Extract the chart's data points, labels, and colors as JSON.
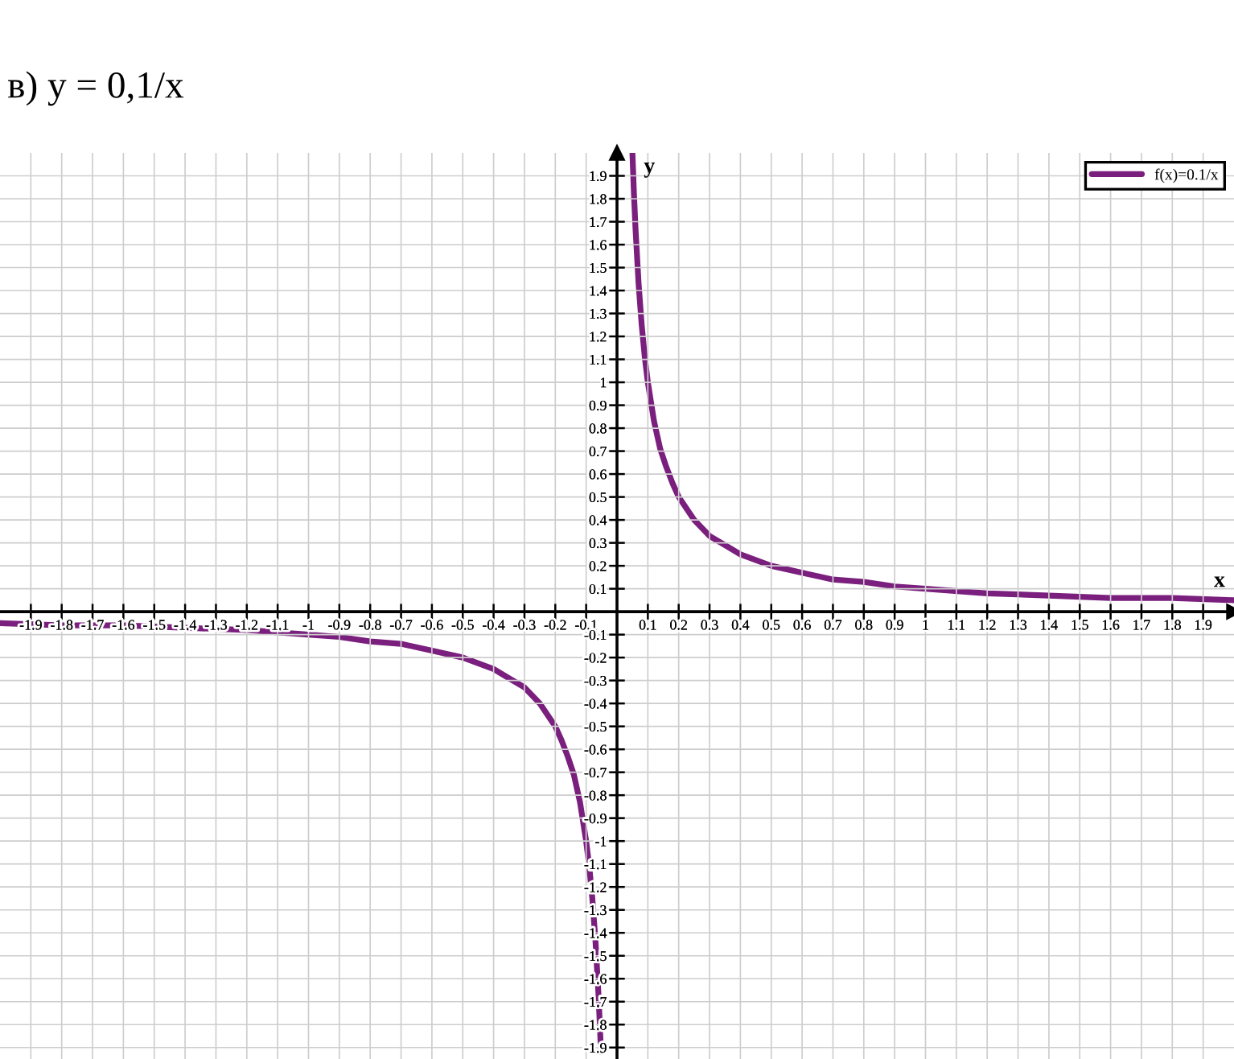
{
  "chart_data": {
    "type": "line",
    "title": "в) y = 0,1/x",
    "xlabel": "x",
    "ylabel": "y",
    "x": [
      -2,
      -1.8,
      -1.6,
      -1.4,
      -1.2,
      -1,
      -0.9,
      -0.8,
      -0.7,
      -0.6,
      -0.5,
      -0.4,
      -0.35,
      -0.3,
      -0.25,
      -0.2,
      -0.18,
      -0.16,
      -0.14,
      -0.12,
      -0.1,
      -0.09,
      -0.08,
      -0.07,
      -0.06,
      -0.055,
      -0.052,
      0,
      0.05,
      0.055,
      0.06,
      0.07,
      0.08,
      0.09,
      0.1,
      0.12,
      0.14,
      0.16,
      0.18,
      0.2,
      0.25,
      0.3,
      0.35,
      0.4,
      0.5,
      0.6,
      0.7,
      0.8,
      0.9,
      1,
      1.2,
      1.4,
      1.6,
      1.8,
      2
    ],
    "series": [
      {
        "name": "f(x)=0.1/x",
        "color": "#7a1f7d",
        "values": [
          -0.05,
          -0.06,
          -0.06,
          -0.07,
          -0.08,
          -0.1,
          -0.11,
          -0.13,
          -0.14,
          -0.17,
          -0.2,
          -0.25,
          -0.29,
          -0.33,
          -0.4,
          -0.5,
          -0.56,
          -0.63,
          -0.71,
          -0.83,
          -1.0,
          -1.11,
          -1.25,
          -1.43,
          -1.67,
          -1.82,
          -1.92,
          null,
          2.0,
          1.82,
          1.67,
          1.43,
          1.25,
          1.11,
          1.0,
          0.83,
          0.71,
          0.63,
          0.56,
          0.5,
          0.4,
          0.33,
          0.29,
          0.25,
          0.2,
          0.17,
          0.14,
          0.13,
          0.11,
          0.1,
          0.08,
          0.07,
          0.06,
          0.06,
          0.05
        ]
      }
    ],
    "xlim": [
      -2,
      2
    ],
    "ylim": [
      -1.95,
      2
    ],
    "xticks": [
      -1.9,
      -1.8,
      -1.7,
      -1.6,
      -1.5,
      -1.4,
      -1.3,
      -1.2,
      -1.1,
      -1,
      -0.9,
      -0.8,
      -0.7,
      -0.6,
      -0.5,
      -0.4,
      -0.3,
      -0.2,
      -0.1,
      0.1,
      0.2,
      0.3,
      0.4,
      0.5,
      0.6,
      0.7,
      0.8,
      0.9,
      1,
      1.1,
      1.2,
      1.3,
      1.4,
      1.5,
      1.6,
      1.7,
      1.8,
      1.9
    ],
    "yticks": [
      -1.9,
      -1.8,
      -1.7,
      -1.6,
      -1.5,
      -1.4,
      -1.3,
      -1.2,
      -1.1,
      -1,
      -0.9,
      -0.8,
      -0.7,
      -0.6,
      -0.5,
      -0.4,
      -0.3,
      -0.2,
      -0.1,
      0.1,
      0.2,
      0.3,
      0.4,
      0.5,
      0.6,
      0.7,
      0.8,
      0.9,
      1,
      1.1,
      1.2,
      1.3,
      1.4,
      1.5,
      1.6,
      1.7,
      1.8,
      1.9
    ],
    "grid": true,
    "legend": "top right"
  }
}
